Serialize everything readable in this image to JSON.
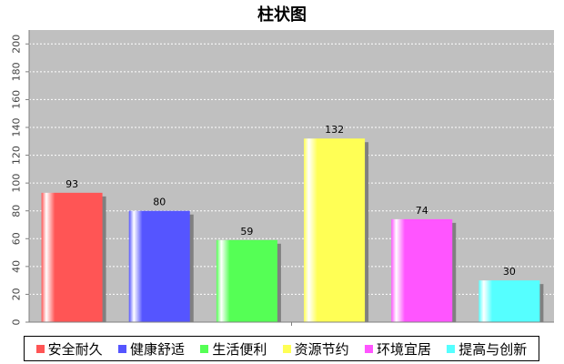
{
  "chart_data": {
    "type": "bar",
    "title": "柱状图",
    "xlabel": "",
    "ylabel": "",
    "ylim": [
      0,
      210
    ],
    "yticks": [
      0,
      20,
      40,
      60,
      80,
      100,
      120,
      140,
      160,
      180,
      200
    ],
    "grid": true,
    "legend_position": "bottom",
    "categories": [
      "安全耐久",
      "健康舒适",
      "生活便利",
      "资源节约",
      "环境宜居",
      "提高与创新"
    ],
    "values": [
      93,
      80,
      59,
      132,
      74,
      30
    ],
    "colors": [
      "#ff5555",
      "#5555ff",
      "#55ff55",
      "#ffff55",
      "#ff55ff",
      "#55ffff"
    ],
    "plot_background": "#c0c0c0"
  }
}
